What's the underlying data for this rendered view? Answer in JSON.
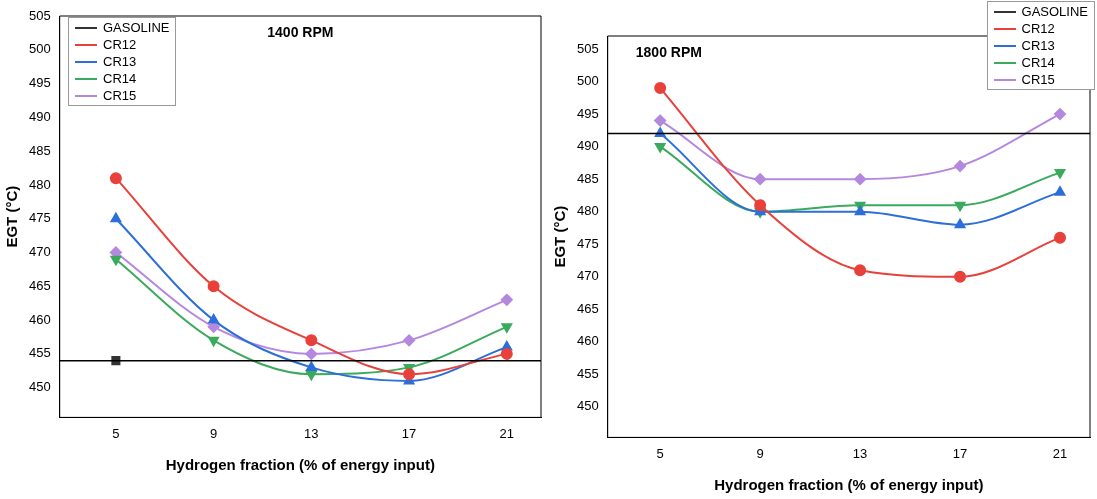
{
  "chart_data": [
    {
      "type": "line",
      "title": "1400 RPM",
      "xlabel": "Hydrogen fraction (% of energy input)",
      "ylabel": "EGT (°C)",
      "x": [
        5,
        9,
        13,
        17,
        21
      ],
      "xlim": [
        2.7,
        22.4
      ],
      "xticks": [
        5,
        9,
        13,
        17,
        21
      ],
      "ylim": [
        445.6,
        505
      ],
      "yticks": [
        450,
        455,
        460,
        465,
        470,
        475,
        480,
        485,
        490,
        495,
        500,
        505
      ],
      "grid": false,
      "legend": "top left",
      "ref_lines": [
        {
          "axis": "y",
          "value": 454,
          "color": "#000000"
        }
      ],
      "series": [
        {
          "name": "GASOLINE",
          "color": "#333333",
          "marker": "square",
          "values": [
            454,
            null,
            null,
            null,
            null
          ]
        },
        {
          "name": "CR12",
          "color": "#e8403a",
          "marker": "circle",
          "values": [
            481,
            465,
            457,
            452,
            455
          ]
        },
        {
          "name": "CR13",
          "color": "#2d6fd8",
          "marker": "triangle",
          "values": [
            475,
            460,
            453,
            451,
            456
          ]
        },
        {
          "name": "CR14",
          "color": "#3aaa5c",
          "marker": "triangle-down",
          "values": [
            469,
            457,
            452,
            453,
            459
          ]
        },
        {
          "name": "CR15",
          "color": "#b588e0",
          "marker": "diamond",
          "values": [
            470,
            459,
            455,
            457,
            463
          ]
        }
      ]
    },
    {
      "type": "line",
      "title": "1800 RPM",
      "xlabel": "Hydrogen fraction (% of energy input)",
      "ylabel": "EGT (°C)",
      "x": [
        5,
        9,
        13,
        17,
        21
      ],
      "xlim": [
        2.9,
        22.2
      ],
      "xticks": [
        5,
        9,
        13,
        17,
        21
      ],
      "ylim": [
        445.3,
        507
      ],
      "yticks": [
        450,
        455,
        460,
        465,
        470,
        475,
        480,
        485,
        490,
        495,
        500,
        505
      ],
      "grid": false,
      "legend": "top right",
      "ref_lines": [
        {
          "axis": "y",
          "value": 492,
          "color": "#000000"
        }
      ],
      "series": [
        {
          "name": "GASOLINE",
          "color": "#333333",
          "marker": "square",
          "values": [
            null,
            null,
            null,
            null,
            null
          ]
        },
        {
          "name": "CR12",
          "color": "#e8403a",
          "marker": "circle",
          "values": [
            499,
            481,
            471,
            470,
            476
          ]
        },
        {
          "name": "CR13",
          "color": "#2d6fd8",
          "marker": "triangle",
          "values": [
            492,
            480,
            480,
            478,
            483
          ]
        },
        {
          "name": "CR14",
          "color": "#3aaa5c",
          "marker": "triangle-down",
          "values": [
            490,
            480,
            481,
            481,
            486
          ]
        },
        {
          "name": "CR15",
          "color": "#b588e0",
          "marker": "diamond",
          "values": [
            494,
            485,
            485,
            487,
            495
          ]
        }
      ]
    }
  ]
}
